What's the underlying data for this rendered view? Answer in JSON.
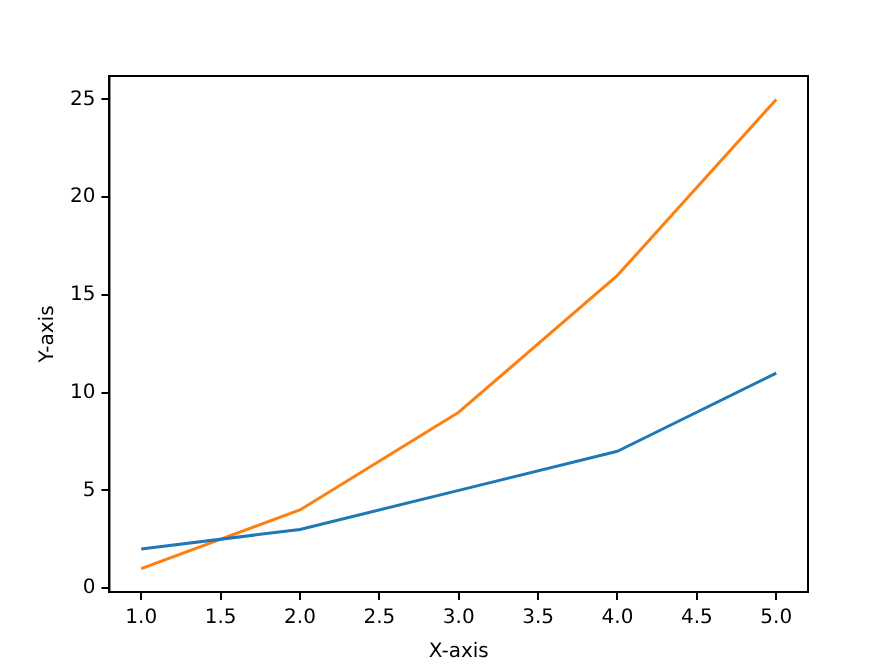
{
  "chart_data": {
    "type": "line",
    "xlabel": "X-axis",
    "ylabel": "Y-axis",
    "x": [
      1,
      2,
      3,
      4,
      5
    ],
    "series": [
      {
        "color": "#1f77b4",
        "values": [
          2,
          3,
          5,
          7,
          11
        ]
      },
      {
        "color": "#ff7f0e",
        "values": [
          1,
          4,
          9,
          16,
          25
        ]
      }
    ],
    "xlim": [
      0.8,
      5.2
    ],
    "xticks": [
      {
        "value": 1,
        "label": "1.0"
      },
      {
        "value": 1.5,
        "label": "1.5"
      },
      {
        "value": 2,
        "label": "2.0"
      },
      {
        "value": 2.5,
        "label": "2.5"
      },
      {
        "value": 3,
        "label": "3.0"
      },
      {
        "value": 3.5,
        "label": "3.5"
      },
      {
        "value": 4,
        "label": "4.0"
      },
      {
        "value": 4.5,
        "label": "4.5"
      },
      {
        "value": 5,
        "label": "5.0"
      }
    ],
    "ylim": [
      -0.2,
      26.2
    ],
    "yticks": [
      0,
      5,
      10,
      15,
      20,
      25
    ],
    "grid": false,
    "legend": false,
    "marker": "none",
    "line_style": "solid"
  }
}
